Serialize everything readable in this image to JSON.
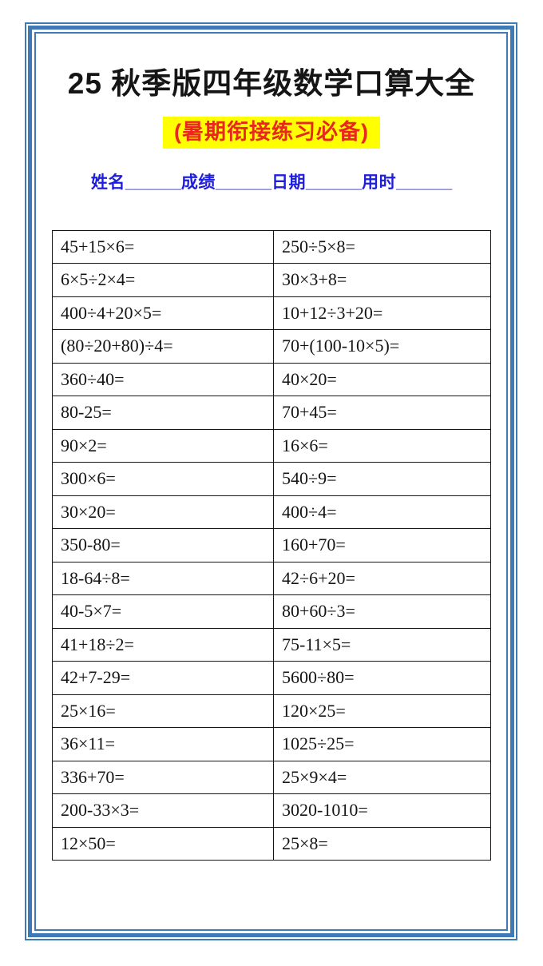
{
  "document": {
    "title": "25 秋季版四年级数学口算大全",
    "subtitle": "(暑期衔接练习必备)"
  },
  "info": {
    "fields": [
      {
        "label": "姓名",
        "blank": "______"
      },
      {
        "label": "成绩",
        "blank": "______"
      },
      {
        "label": "日期",
        "blank": "______"
      },
      {
        "label": "用时",
        "blank": "______"
      }
    ]
  },
  "colors": {
    "frame_blue": "#3e7ab5",
    "title_black": "#151515",
    "subtitle_red": "#e8281e",
    "subtitle_highlight_yellow": "#ffff00",
    "info_blue": "#1e1ee0",
    "table_border_black": "#161616"
  },
  "problems": {
    "columns": 2,
    "rows": [
      [
        "45+15×6=",
        "250÷5×8="
      ],
      [
        "6×5÷2×4=",
        "30×3+8="
      ],
      [
        "400÷4+20×5=",
        "10+12÷3+20="
      ],
      [
        "(80÷20+80)÷4=",
        "70+(100-10×5)="
      ],
      [
        "360÷40=",
        "40×20="
      ],
      [
        "80-25=",
        "70+45="
      ],
      [
        "90×2=",
        "16×6="
      ],
      [
        "300×6=",
        "540÷9="
      ],
      [
        "30×20=",
        "400÷4="
      ],
      [
        "350-80=",
        "160+70="
      ],
      [
        "18-64÷8=",
        "42÷6+20="
      ],
      [
        "40-5×7=",
        "80+60÷3="
      ],
      [
        "41+18÷2=",
        "75-11×5="
      ],
      [
        "42+7-29=",
        "5600÷80="
      ],
      [
        "25×16=",
        "120×25="
      ],
      [
        "36×11=",
        "1025÷25="
      ],
      [
        "336+70=",
        "25×9×4="
      ],
      [
        "200-33×3=",
        "3020-1010="
      ],
      [
        "12×50=",
        "25×8="
      ]
    ]
  }
}
